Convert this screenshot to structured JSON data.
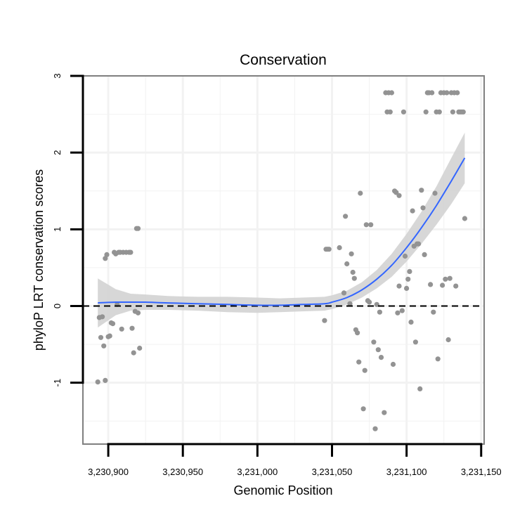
{
  "chart_data": {
    "type": "scatter",
    "title": "Conservation",
    "xlabel": "Genomic Position",
    "ylabel": "phyloP LRT conservation scores",
    "xlim": [
      3230883,
      3231152
    ],
    "ylim": [
      -1.8,
      3.0
    ],
    "grid": true,
    "reference_line": {
      "y": 0,
      "style": "dashed"
    },
    "x_ticks": [
      {
        "value": 3230900,
        "label": "3,230,900"
      },
      {
        "value": 3230950,
        "label": "3,230,950"
      },
      {
        "value": 3231000,
        "label": "3,231,000"
      },
      {
        "value": 3231050,
        "label": "3,231,050"
      },
      {
        "value": 3231100,
        "label": "3,231,100"
      },
      {
        "value": 3231150,
        "label": "3,231,150"
      }
    ],
    "y_ticks": [
      {
        "value": -1,
        "label": "-1"
      },
      {
        "value": 0,
        "label": "0"
      },
      {
        "value": 1,
        "label": "1"
      },
      {
        "value": 2,
        "label": "2"
      },
      {
        "value": 3,
        "label": "3"
      }
    ],
    "colors": {
      "points": "#939393",
      "smooth": "#3366ff",
      "band": "#d3d3d3",
      "frame": "#7f7f7f",
      "grid": "#f2f2f2"
    },
    "points": [
      {
        "x": 3230893,
        "y": -0.99
      },
      {
        "x": 3230894,
        "y": -0.15
      },
      {
        "x": 3230895,
        "y": -0.41
      },
      {
        "x": 3230896,
        "y": -0.14
      },
      {
        "x": 3230897,
        "y": -0.52
      },
      {
        "x": 3230898,
        "y": 0.62
      },
      {
        "x": 3230898,
        "y": -0.97
      },
      {
        "x": 3230899,
        "y": 0.67
      },
      {
        "x": 3230900,
        "y": -0.4
      },
      {
        "x": 3230901,
        "y": -0.39
      },
      {
        "x": 3230902,
        "y": -0.22
      },
      {
        "x": 3230903,
        "y": -0.23
      },
      {
        "x": 3230904,
        "y": 0.7
      },
      {
        "x": 3230905,
        "y": 0.68
      },
      {
        "x": 3230906,
        "y": 0.02
      },
      {
        "x": 3230907,
        "y": 0.7
      },
      {
        "x": 3230908,
        "y": 0.7
      },
      {
        "x": 3230909,
        "y": -0.3
      },
      {
        "x": 3230910,
        "y": 0.7
      },
      {
        "x": 3230912,
        "y": 0.7
      },
      {
        "x": 3230914,
        "y": 0.7
      },
      {
        "x": 3230915,
        "y": 0.7
      },
      {
        "x": 3230916,
        "y": -0.29
      },
      {
        "x": 3230917,
        "y": -0.61
      },
      {
        "x": 3230918,
        "y": -0.07
      },
      {
        "x": 3230919,
        "y": 1.01
      },
      {
        "x": 3230920,
        "y": 1.01
      },
      {
        "x": 3230920,
        "y": -0.09
      },
      {
        "x": 3230921,
        "y": -0.55
      },
      {
        "x": 3231045,
        "y": -0.19
      },
      {
        "x": 3231046,
        "y": 0.74
      },
      {
        "x": 3231047,
        "y": 0.74
      },
      {
        "x": 3231048,
        "y": 0.74
      },
      {
        "x": 3231055,
        "y": 0.76
      },
      {
        "x": 3231058,
        "y": 0.17
      },
      {
        "x": 3231059,
        "y": 1.17
      },
      {
        "x": 3231060,
        "y": 0.55
      },
      {
        "x": 3231062,
        "y": 0.03
      },
      {
        "x": 3231063,
        "y": 0.68
      },
      {
        "x": 3231064,
        "y": 0.44
      },
      {
        "x": 3231065,
        "y": 0.36
      },
      {
        "x": 3231066,
        "y": -0.31
      },
      {
        "x": 3231067,
        "y": -0.35
      },
      {
        "x": 3231068,
        "y": -0.73
      },
      {
        "x": 3231069,
        "y": 1.47
      },
      {
        "x": 3231071,
        "y": -1.34
      },
      {
        "x": 3231072,
        "y": -0.84
      },
      {
        "x": 3231073,
        "y": 1.06
      },
      {
        "x": 3231074,
        "y": 0.07
      },
      {
        "x": 3231075,
        "y": 0.05
      },
      {
        "x": 3231076,
        "y": 1.06
      },
      {
        "x": 3231078,
        "y": -0.47
      },
      {
        "x": 3231079,
        "y": -1.6
      },
      {
        "x": 3231080,
        "y": 0.02
      },
      {
        "x": 3231081,
        "y": -0.57
      },
      {
        "x": 3231082,
        "y": -0.08
      },
      {
        "x": 3231083,
        "y": -0.67
      },
      {
        "x": 3231085,
        "y": -1.39
      },
      {
        "x": 3231086,
        "y": 2.78
      },
      {
        "x": 3231087,
        "y": 2.53
      },
      {
        "x": 3231088,
        "y": 2.78
      },
      {
        "x": 3231089,
        "y": 2.53
      },
      {
        "x": 3231090,
        "y": 2.78
      },
      {
        "x": 3231091,
        "y": -0.76
      },
      {
        "x": 3231092,
        "y": 1.5
      },
      {
        "x": 3231093,
        "y": 1.48
      },
      {
        "x": 3231094,
        "y": -0.09
      },
      {
        "x": 3231095,
        "y": 1.44
      },
      {
        "x": 3231095,
        "y": 0.26
      },
      {
        "x": 3231097,
        "y": -0.06
      },
      {
        "x": 3231098,
        "y": 2.53
      },
      {
        "x": 3231099,
        "y": 0.65
      },
      {
        "x": 3231100,
        "y": 0.23
      },
      {
        "x": 3231101,
        "y": 0.35
      },
      {
        "x": 3231102,
        "y": 0.45
      },
      {
        "x": 3231103,
        "y": -0.21
      },
      {
        "x": 3231104,
        "y": 1.24
      },
      {
        "x": 3231105,
        "y": 0.78
      },
      {
        "x": 3231106,
        "y": -0.47
      },
      {
        "x": 3231107,
        "y": 0.81
      },
      {
        "x": 3231108,
        "y": 0.81
      },
      {
        "x": 3231109,
        "y": -1.08
      },
      {
        "x": 3231110,
        "y": 1.51
      },
      {
        "x": 3231111,
        "y": 1.28
      },
      {
        "x": 3231112,
        "y": 0.67
      },
      {
        "x": 3231113,
        "y": 2.53
      },
      {
        "x": 3231114,
        "y": 2.78
      },
      {
        "x": 3231115,
        "y": 2.78
      },
      {
        "x": 3231116,
        "y": 0.28
      },
      {
        "x": 3231117,
        "y": 2.78
      },
      {
        "x": 3231118,
        "y": -0.08
      },
      {
        "x": 3231119,
        "y": 1.47
      },
      {
        "x": 3231120,
        "y": 2.53
      },
      {
        "x": 3231121,
        "y": -0.69
      },
      {
        "x": 3231122,
        "y": 2.53
      },
      {
        "x": 3231123,
        "y": 2.78
      },
      {
        "x": 3231124,
        "y": 0.27
      },
      {
        "x": 3231125,
        "y": 2.78
      },
      {
        "x": 3231126,
        "y": 0.35
      },
      {
        "x": 3231127,
        "y": 2.78
      },
      {
        "x": 3231128,
        "y": -0.44
      },
      {
        "x": 3231129,
        "y": 0.36
      },
      {
        "x": 3231130,
        "y": 2.78
      },
      {
        "x": 3231131,
        "y": 2.53
      },
      {
        "x": 3231132,
        "y": 2.78
      },
      {
        "x": 3231133,
        "y": 0.26
      },
      {
        "x": 3231134,
        "y": 2.78
      },
      {
        "x": 3231135,
        "y": 2.53
      },
      {
        "x": 3231136,
        "y": 2.53
      },
      {
        "x": 3231137,
        "y": 2.53
      },
      {
        "x": 3231138,
        "y": 2.53
      },
      {
        "x": 3231139,
        "y": 1.14
      }
    ],
    "smooth": {
      "x": [
        3230893,
        3230905,
        3230915,
        3230925,
        3230940,
        3230960,
        3230980,
        3231000,
        3231015,
        3231030,
        3231045,
        3231050,
        3231060,
        3231070,
        3231080,
        3231090,
        3231100,
        3231110,
        3231120,
        3231130,
        3231139
      ],
      "y": [
        0.04,
        0.05,
        0.05,
        0.05,
        0.04,
        0.03,
        0.02,
        0.01,
        0.01,
        0.02,
        0.03,
        0.05,
        0.11,
        0.21,
        0.35,
        0.53,
        0.76,
        1.02,
        1.31,
        1.63,
        1.93
      ],
      "lower": [
        -0.28,
        -0.12,
        -0.06,
        -0.05,
        -0.05,
        -0.06,
        -0.08,
        -0.09,
        -0.08,
        -0.07,
        -0.06,
        -0.04,
        0.02,
        0.11,
        0.23,
        0.38,
        0.58,
        0.81,
        1.06,
        1.33,
        1.6
      ],
      "upper": [
        0.36,
        0.22,
        0.16,
        0.15,
        0.13,
        0.12,
        0.12,
        0.11,
        0.1,
        0.11,
        0.12,
        0.14,
        0.2,
        0.31,
        0.47,
        0.68,
        0.94,
        1.23,
        1.56,
        1.93,
        2.26
      ]
    }
  }
}
